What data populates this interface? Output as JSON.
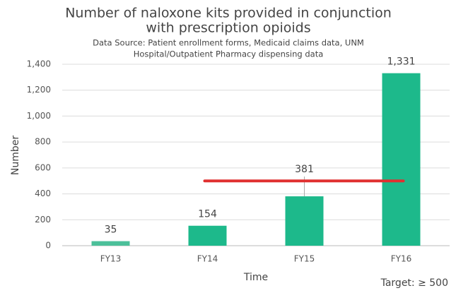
{
  "chart_data": {
    "type": "bar",
    "title": [
      "Number of naloxone kits provided in conjunction",
      "with prescription opioids"
    ],
    "subtitle": [
      "Data Source: Patient enrollment forms, Medicaid claims data, UNM",
      "Hospital/Outpatient Pharmacy dispensing data"
    ],
    "x_label": "Time",
    "y_label": "Number",
    "categories": [
      "FY13",
      "FY14",
      "FY15",
      "FY16"
    ],
    "values": [
      35,
      154,
      381,
      1331
    ],
    "value_labels": [
      "35",
      "154",
      "381",
      "1,331"
    ],
    "colors": [
      "#4cc09a",
      "#1db98b",
      "#1db98b",
      "#1db98b"
    ],
    "ylim": [
      0,
      1400
    ],
    "yticks": [
      0,
      200,
      400,
      600,
      800,
      {
        "value": 1000,
        "label": "1,000"
      },
      {
        "value": 1200,
        "label": "1,200"
      },
      {
        "value": 1400,
        "label": "1,400"
      }
    ],
    "grid": true,
    "target": 500,
    "target_color": "#e03030",
    "target_label": "Target: ≥ 500"
  }
}
